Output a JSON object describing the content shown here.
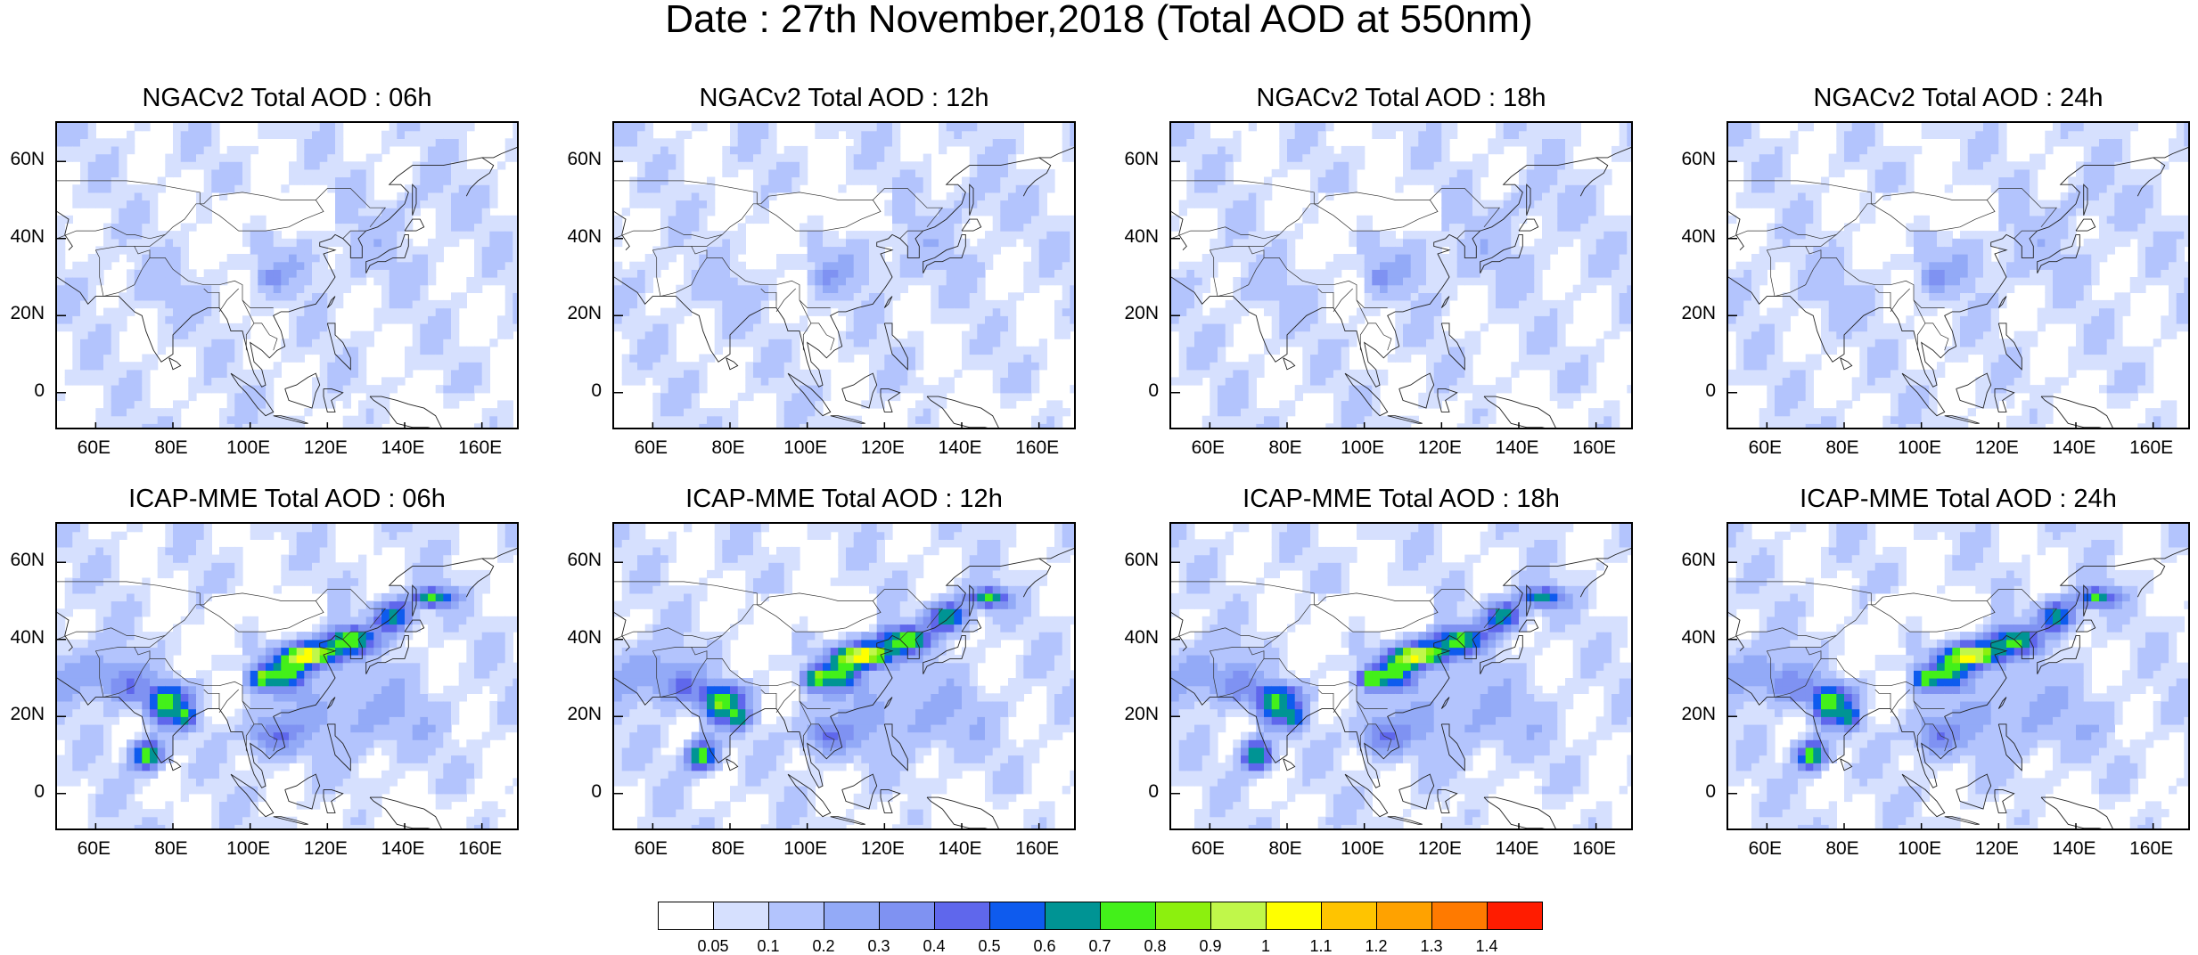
{
  "title": "Date : 27th November,2018 (Total AOD at 550nm)",
  "axes": {
    "y_ticks": [
      "60N",
      "40N",
      "20N",
      "0"
    ],
    "x_ticks": [
      "60E",
      "80E",
      "100E",
      "120E",
      "140E",
      "160E"
    ],
    "lat_range": [
      -10,
      70
    ],
    "lon_range": [
      50,
      170
    ]
  },
  "panels": [
    {
      "title": "NGACv2 Total AOD : 06h",
      "model": "NGACv2",
      "hour": "06h",
      "intensity": 0.35
    },
    {
      "title": "NGACv2 Total AOD : 12h",
      "model": "NGACv2",
      "hour": "12h",
      "intensity": 0.38
    },
    {
      "title": "NGACv2 Total AOD : 18h",
      "model": "NGACv2",
      "hour": "18h",
      "intensity": 0.4
    },
    {
      "title": "NGACv2 Total AOD : 24h",
      "model": "NGACv2",
      "hour": "24h",
      "intensity": 0.4
    },
    {
      "title": "ICAP-MME Total AOD : 06h",
      "model": "ICAP-MME",
      "hour": "06h",
      "intensity": 1.0
    },
    {
      "title": "ICAP-MME Total AOD : 12h",
      "model": "ICAP-MME",
      "hour": "12h",
      "intensity": 1.0
    },
    {
      "title": "ICAP-MME Total AOD : 18h",
      "model": "ICAP-MME",
      "hour": "18h",
      "intensity": 0.95
    },
    {
      "title": "ICAP-MME Total AOD : 24h",
      "model": "ICAP-MME",
      "hour": "24h",
      "intensity": 0.95
    }
  ],
  "colorbar": {
    "labels": [
      "0.05",
      "0.1",
      "0.2",
      "0.3",
      "0.4",
      "0.5",
      "0.6",
      "0.7",
      "0.8",
      "0.9",
      "1",
      "1.1",
      "1.2",
      "1.3",
      "1.4"
    ],
    "colors": [
      "#ffffff",
      "#d6e0fe",
      "#b3c4fd",
      "#93aaf7",
      "#7f92f2",
      "#5f67ec",
      "#0e5bee",
      "#009494",
      "#43f01a",
      "#8cf00e",
      "#c0f74a",
      "#ffff00",
      "#ffc400",
      "#ffa200",
      "#ff7a00",
      "#ff1c00"
    ]
  }
}
